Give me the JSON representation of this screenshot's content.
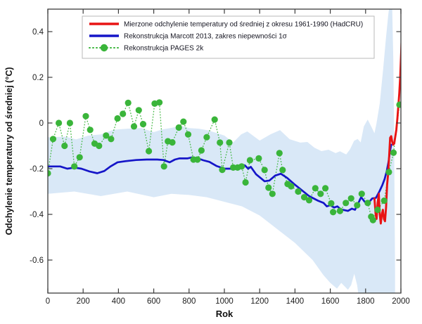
{
  "colors": {
    "hadcru_red": "#e81414",
    "marcott_blue": "#1515c8",
    "pages2k_green": "#3ab53a",
    "band_lightblue": "#d9e8f7",
    "axis": "#3b3b3b",
    "text": "#141420"
  },
  "axes": {
    "xlabel": "Rok",
    "ylabel": "Odchylenie temperatury od średniej (°C)",
    "x_ticks": [
      0,
      200,
      400,
      600,
      800,
      1000,
      1200,
      1400,
      1600,
      1800,
      2000
    ],
    "y_ticks": [
      0.4,
      0.2,
      0,
      -0.2,
      -0.4,
      -0.6
    ],
    "y_tick_labels": [
      "0.4",
      "0.2",
      "0",
      "-0.2",
      "-0.4",
      "-0.6"
    ]
  },
  "chart_data": {
    "type": "line",
    "title": "",
    "xlabel": "Rok",
    "ylabel": "Odchylenie temperatury od średniej (°C)",
    "xlim": [
      0,
      2000
    ],
    "ylim": [
      -0.745,
      0.5
    ],
    "grid": false,
    "legend_position": "top",
    "series": [
      {
        "name": "Mierzone odchylenie temperatury od średniej z okresu 1961-1990 (HadCRU)",
        "type": "line",
        "color": "#e81414",
        "points": [
          [
            1850,
            -0.33
          ],
          [
            1857,
            -0.4
          ],
          [
            1862,
            -0.42
          ],
          [
            1868,
            -0.35
          ],
          [
            1875,
            -0.31
          ],
          [
            1880,
            -0.4
          ],
          [
            1886,
            -0.44
          ],
          [
            1892,
            -0.4
          ],
          [
            1898,
            -0.38
          ],
          [
            1904,
            -0.42
          ],
          [
            1910,
            -0.43
          ],
          [
            1916,
            -0.37
          ],
          [
            1922,
            -0.27
          ],
          [
            1928,
            -0.22
          ],
          [
            1933,
            -0.15
          ],
          [
            1939,
            -0.065
          ],
          [
            1945,
            -0.058
          ],
          [
            1950,
            -0.08
          ],
          [
            1956,
            -0.095
          ],
          [
            1962,
            -0.09
          ],
          [
            1968,
            -0.06
          ],
          [
            1974,
            -0.03
          ],
          [
            1980,
            0.02
          ],
          [
            1986,
            0.08
          ],
          [
            1991,
            0.13
          ],
          [
            1996,
            0.2
          ],
          [
            2001,
            0.3
          ],
          [
            2006,
            0.4
          ],
          [
            2010,
            0.46
          ]
        ]
      },
      {
        "name": "Rekonstrukcja Marcott 2013, zakres niepewności 1σ",
        "type": "line-with-band",
        "color": "#1515c8",
        "band_color": "#d9e8f7",
        "points": [
          [
            0,
            -0.19
          ],
          [
            70,
            -0.19
          ],
          [
            110,
            -0.2
          ],
          [
            150,
            -0.195
          ],
          [
            190,
            -0.2
          ],
          [
            235,
            -0.212
          ],
          [
            280,
            -0.22
          ],
          [
            320,
            -0.21
          ],
          [
            355,
            -0.19
          ],
          [
            395,
            -0.172
          ],
          [
            440,
            -0.167
          ],
          [
            500,
            -0.162
          ],
          [
            560,
            -0.16
          ],
          [
            620,
            -0.16
          ],
          [
            655,
            -0.162
          ],
          [
            690,
            -0.172
          ],
          [
            720,
            -0.16
          ],
          [
            745,
            -0.155
          ],
          [
            790,
            -0.155
          ],
          [
            820,
            -0.15
          ],
          [
            850,
            -0.155
          ],
          [
            880,
            -0.163
          ],
          [
            915,
            -0.17
          ],
          [
            955,
            -0.188
          ],
          [
            1000,
            -0.2
          ],
          [
            1050,
            -0.2
          ],
          [
            1085,
            -0.197
          ],
          [
            1115,
            -0.185
          ],
          [
            1135,
            -0.2
          ],
          [
            1150,
            -0.192
          ],
          [
            1180,
            -0.225
          ],
          [
            1228,
            -0.255
          ],
          [
            1255,
            -0.252
          ],
          [
            1288,
            -0.23
          ],
          [
            1320,
            -0.222
          ],
          [
            1355,
            -0.24
          ],
          [
            1395,
            -0.267
          ],
          [
            1435,
            -0.292
          ],
          [
            1480,
            -0.32
          ],
          [
            1530,
            -0.34
          ],
          [
            1562,
            -0.35
          ],
          [
            1580,
            -0.365
          ],
          [
            1600,
            -0.36
          ],
          [
            1622,
            -0.37
          ],
          [
            1640,
            -0.365
          ],
          [
            1660,
            -0.378
          ],
          [
            1700,
            -0.385
          ],
          [
            1722,
            -0.375
          ],
          [
            1740,
            -0.38
          ],
          [
            1758,
            -0.352
          ],
          [
            1775,
            -0.325
          ],
          [
            1795,
            -0.345
          ],
          [
            1815,
            -0.35
          ],
          [
            1838,
            -0.33
          ],
          [
            1858,
            -0.328
          ],
          [
            1878,
            -0.3
          ],
          [
            1895,
            -0.272
          ],
          [
            1908,
            -0.245
          ],
          [
            1920,
            -0.21
          ],
          [
            1930,
            -0.17
          ],
          [
            1938,
            -0.125
          ],
          [
            1945,
            -0.095
          ]
        ],
        "band_upper": [
          [
            0,
            -0.062
          ],
          [
            100,
            -0.06
          ],
          [
            160,
            -0.072
          ],
          [
            230,
            -0.055
          ],
          [
            300,
            -0.05
          ],
          [
            370,
            -0.03
          ],
          [
            450,
            -0.025
          ],
          [
            530,
            -0.022
          ],
          [
            600,
            -0.04
          ],
          [
            650,
            -0.028
          ],
          [
            710,
            -0.02
          ],
          [
            755,
            -0.012
          ],
          [
            800,
            -0.022
          ],
          [
            855,
            -0.025
          ],
          [
            905,
            -0.032
          ],
          [
            950,
            -0.042
          ],
          [
            1000,
            -0.055
          ],
          [
            1050,
            -0.085
          ],
          [
            1095,
            -0.05
          ],
          [
            1130,
            -0.037
          ],
          [
            1200,
            -0.077
          ],
          [
            1260,
            -0.05
          ],
          [
            1315,
            -0.031
          ],
          [
            1370,
            -0.071
          ],
          [
            1430,
            -0.086
          ],
          [
            1470,
            -0.083
          ],
          [
            1510,
            -0.108
          ],
          [
            1550,
            -0.123
          ],
          [
            1590,
            -0.117
          ],
          [
            1630,
            -0.132
          ],
          [
            1655,
            -0.124
          ],
          [
            1690,
            -0.138
          ],
          [
            1712,
            -0.115
          ],
          [
            1735,
            -0.078
          ],
          [
            1755,
            -0.07
          ],
          [
            1772,
            -0.085
          ],
          [
            1790,
            -0.015
          ],
          [
            1812,
            0.015
          ],
          [
            1835,
            -0.02
          ],
          [
            1850,
            -0.045
          ],
          [
            1862,
            0.0
          ],
          [
            1880,
            0.085
          ],
          [
            1900,
            0.24
          ],
          [
            1915,
            0.37
          ],
          [
            1928,
            0.47
          ],
          [
            1936,
            0.52
          ],
          [
            1950,
            0.52
          ],
          [
            1957,
            0.28
          ],
          [
            1961,
            0.0
          ],
          [
            1964,
            -0.35
          ],
          [
            1967,
            -0.64
          ]
        ],
        "band_lower": [
          [
            0,
            -0.31
          ],
          [
            150,
            -0.3
          ],
          [
            300,
            -0.32
          ],
          [
            450,
            -0.3
          ],
          [
            600,
            -0.325
          ],
          [
            700,
            -0.31
          ],
          [
            800,
            -0.315
          ],
          [
            900,
            -0.325
          ],
          [
            1000,
            -0.345
          ],
          [
            1100,
            -0.365
          ],
          [
            1200,
            -0.405
          ],
          [
            1300,
            -0.465
          ],
          [
            1400,
            -0.525
          ],
          [
            1500,
            -0.6
          ],
          [
            1560,
            -0.665
          ],
          [
            1600,
            -0.7
          ],
          [
            1638,
            -0.725
          ],
          [
            1662,
            -0.7
          ],
          [
            1700,
            -0.73
          ],
          [
            1718,
            -0.71
          ],
          [
            1736,
            -0.66
          ],
          [
            1752,
            -0.71
          ],
          [
            1768,
            -0.8
          ],
          [
            1967,
            -0.8
          ]
        ]
      },
      {
        "name": "Rekonstrukcja PAGES 2k",
        "type": "scatter-dotted",
        "color": "#3ab53a",
        "points": [
          [
            0,
            -0.22
          ],
          [
            30,
            -0.07
          ],
          [
            62,
            0.0
          ],
          [
            95,
            -0.1
          ],
          [
            125,
            0.0
          ],
          [
            150,
            -0.19
          ],
          [
            180,
            -0.15
          ],
          [
            215,
            0.03
          ],
          [
            240,
            -0.03
          ],
          [
            265,
            -0.09
          ],
          [
            290,
            -0.1
          ],
          [
            330,
            -0.055
          ],
          [
            358,
            -0.07
          ],
          [
            395,
            0.02
          ],
          [
            425,
            0.04
          ],
          [
            455,
            0.088
          ],
          [
            488,
            -0.015
          ],
          [
            515,
            0.056
          ],
          [
            540,
            -0.005
          ],
          [
            572,
            -0.123
          ],
          [
            605,
            0.085
          ],
          [
            632,
            0.09
          ],
          [
            658,
            -0.19
          ],
          [
            680,
            -0.08
          ],
          [
            705,
            -0.085
          ],
          [
            742,
            -0.02
          ],
          [
            768,
            0.006
          ],
          [
            795,
            -0.05
          ],
          [
            825,
            -0.16
          ],
          [
            848,
            -0.16
          ],
          [
            870,
            -0.12
          ],
          [
            900,
            -0.062
          ],
          [
            945,
            0.015
          ],
          [
            975,
            -0.086
          ],
          [
            988,
            -0.205
          ],
          [
            1028,
            -0.086
          ],
          [
            1050,
            -0.195
          ],
          [
            1075,
            -0.195
          ],
          [
            1098,
            -0.19
          ],
          [
            1120,
            -0.26
          ],
          [
            1145,
            -0.163
          ],
          [
            1195,
            -0.155
          ],
          [
            1228,
            -0.206
          ],
          [
            1250,
            -0.283
          ],
          [
            1272,
            -0.31
          ],
          [
            1312,
            -0.132
          ],
          [
            1330,
            -0.206
          ],
          [
            1358,
            -0.267
          ],
          [
            1378,
            -0.277
          ],
          [
            1418,
            -0.3
          ],
          [
            1452,
            -0.325
          ],
          [
            1480,
            -0.338
          ],
          [
            1515,
            -0.286
          ],
          [
            1545,
            -0.31
          ],
          [
            1572,
            -0.286
          ],
          [
            1605,
            -0.352
          ],
          [
            1616,
            -0.39
          ],
          [
            1655,
            -0.385
          ],
          [
            1688,
            -0.35
          ],
          [
            1718,
            -0.33
          ],
          [
            1752,
            -0.36
          ],
          [
            1778,
            -0.31
          ],
          [
            1812,
            -0.35
          ],
          [
            1832,
            -0.41
          ],
          [
            1842,
            -0.425
          ],
          [
            1868,
            -0.38
          ],
          [
            1905,
            -0.34
          ],
          [
            1932,
            -0.215
          ],
          [
            1958,
            -0.13
          ],
          [
            1992,
            0.08
          ]
        ]
      }
    ]
  },
  "legend": {
    "items": [
      {
        "label": "Mierzone odchylenie temperatury od średniej z okresu 1961-1990 (HadCRU)",
        "swatch": "red-line"
      },
      {
        "label": "Rekonstrukcja Marcott 2013, zakres niepewności 1σ",
        "swatch": "blue-line"
      },
      {
        "label": "Rekonstrukcja PAGES 2k",
        "swatch": "green-dotted-marker"
      }
    ]
  }
}
